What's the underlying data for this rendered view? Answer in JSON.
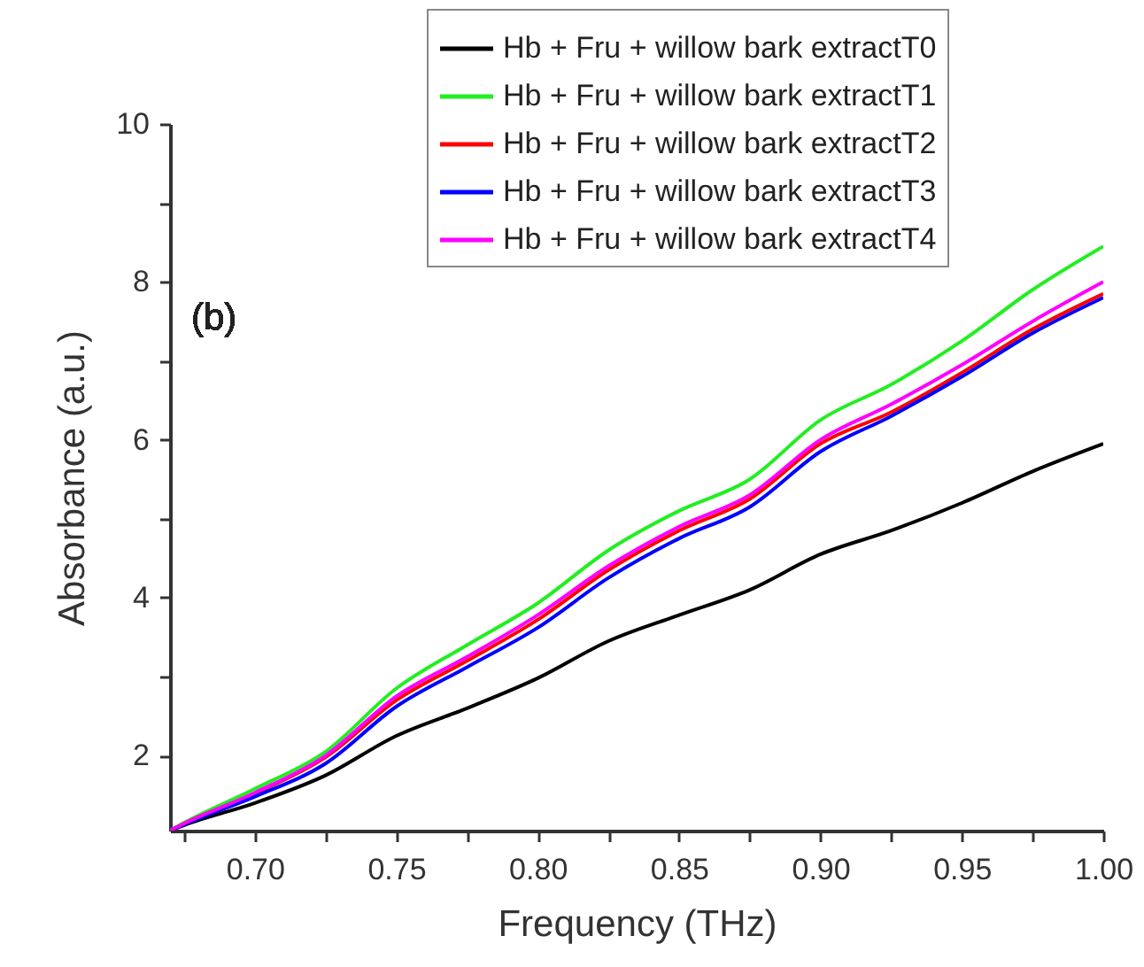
{
  "chart_data": {
    "type": "line",
    "xlabel": "Frequency (THz)",
    "ylabel": "Absorbance (a.u.)",
    "annotations": [
      "(b)"
    ],
    "x": [
      0.67,
      0.675,
      0.7,
      0.725,
      0.75,
      0.775,
      0.8,
      0.825,
      0.85,
      0.875,
      0.9,
      0.925,
      0.95,
      0.975,
      1.0
    ],
    "series": [
      {
        "name": "Hb + Fru + willow bark extractT0",
        "color": "#000000",
        "values": [
          1.05,
          1.12,
          1.4,
          1.75,
          2.25,
          2.6,
          2.98,
          3.45,
          3.78,
          4.1,
          4.55,
          4.85,
          5.2,
          5.6,
          5.95
        ]
      },
      {
        "name": "Hb + Fru + willow bark extractT1",
        "color": "#22ee22",
        "values": [
          1.05,
          1.15,
          1.58,
          2.05,
          2.85,
          3.4,
          3.93,
          4.6,
          5.1,
          5.5,
          6.25,
          6.7,
          7.25,
          7.9,
          8.45
        ]
      },
      {
        "name": "Hb + Fru + willow bark extractT2",
        "color": "#ff0000",
        "values": [
          1.05,
          1.14,
          1.52,
          1.98,
          2.7,
          3.2,
          3.72,
          4.35,
          4.85,
          5.25,
          5.95,
          6.35,
          6.85,
          7.4,
          7.85
        ]
      },
      {
        "name": "Hb + Fru + willow bark extractT3",
        "color": "#0000ff",
        "values": [
          1.05,
          1.13,
          1.48,
          1.9,
          2.62,
          3.12,
          3.62,
          4.25,
          4.75,
          5.15,
          5.85,
          6.3,
          6.8,
          7.35,
          7.8
        ]
      },
      {
        "name": "Hb + Fru + willow bark extractT4",
        "color": "#ff00ff",
        "values": [
          1.05,
          1.14,
          1.53,
          2.0,
          2.75,
          3.25,
          3.78,
          4.4,
          4.9,
          5.3,
          6.0,
          6.45,
          6.95,
          7.5,
          8.0
        ]
      }
    ],
    "xlim": [
      0.67,
      1.0
    ],
    "ylim": [
      1.05,
      10
    ],
    "xticks": [
      {
        "value": 0.675,
        "label": null
      },
      {
        "value": 0.7,
        "label": "0.70"
      },
      {
        "value": 0.725,
        "label": null
      },
      {
        "value": 0.75,
        "label": "0.75"
      },
      {
        "value": 0.775,
        "label": null
      },
      {
        "value": 0.8,
        "label": "0.80"
      },
      {
        "value": 0.825,
        "label": null
      },
      {
        "value": 0.85,
        "label": "0.85"
      },
      {
        "value": 0.875,
        "label": null
      },
      {
        "value": 0.9,
        "label": "0.90"
      },
      {
        "value": 0.925,
        "label": null
      },
      {
        "value": 0.95,
        "label": "0.95"
      },
      {
        "value": 0.975,
        "label": null
      },
      {
        "value": 1.0,
        "label": "1.00"
      }
    ],
    "yticks": [
      2,
      {
        "value": 3,
        "label": null
      },
      4,
      {
        "value": 5,
        "label": null
      },
      6,
      {
        "value": 7,
        "label": null
      },
      8,
      {
        "value": 9,
        "label": null
      },
      10
    ],
    "grid": false,
    "legend": "top",
    "line_style": "solid",
    "marker": "none"
  }
}
